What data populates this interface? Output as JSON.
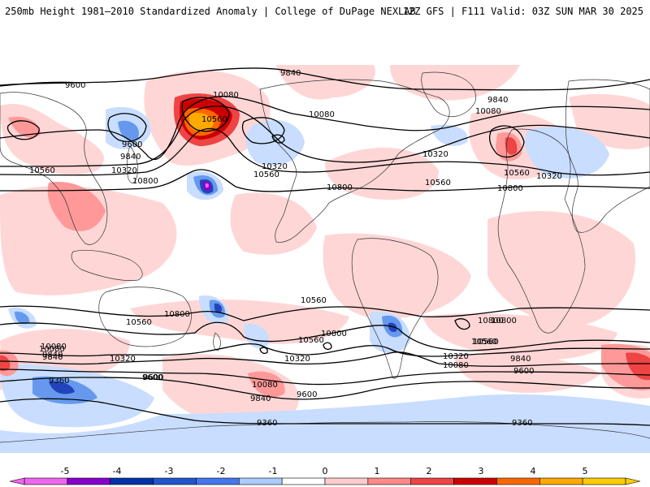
{
  "header": {
    "title": "250mb Height 1981–2010 Standardized Anomaly | College of DuPage NEXLAB",
    "run_info": "12Z GFS | F111 Valid: 03Z SUN MAR 30 2025"
  },
  "colorbar": {
    "ticks": [
      "-5",
      "-4",
      "-3",
      "-2",
      "-1",
      "0",
      "1",
      "2",
      "3",
      "4",
      "5"
    ],
    "colors": [
      "#ee66ee",
      "#8800cc",
      "#0033aa",
      "#2255cc",
      "#4477ee",
      "#aaccff",
      "#ffffff",
      "#ffcccc",
      "#ff8888",
      "#ee4444",
      "#cc0000",
      "#ff6600",
      "#ffaa00",
      "#ffcc00"
    ]
  },
  "contour_labels": [
    "9840",
    "9600",
    "10080",
    "10560",
    "10080",
    "9600",
    "9840",
    "10320",
    "10560",
    "10800",
    "10320",
    "10560",
    "10800",
    "10320",
    "10560",
    "9840",
    "10080",
    "10800",
    "10320",
    "10560",
    "10560",
    "10800",
    "10800",
    "10560",
    "10080",
    "9840",
    "10320",
    "10560",
    "10320",
    "10080",
    "9600",
    "9840",
    "10800",
    "10560",
    "10320",
    "10080",
    "9840",
    "9600",
    "9600",
    "9840",
    "10080",
    "9360",
    "9600",
    "9360",
    "9360",
    "10800",
    "10560"
  ],
  "colors": {
    "pos1": "#ffd6d6",
    "pos2": "#ff9999",
    "pos3": "#ee4444",
    "pos4": "#cc0000",
    "pos5": "#ffaa00",
    "neg1": "#c8ddff",
    "neg2": "#6699ee",
    "neg3": "#2244bb",
    "neg4": "#8800cc",
    "neg5": "#ee66ee",
    "contour": "#000000",
    "coast": "#333333"
  }
}
